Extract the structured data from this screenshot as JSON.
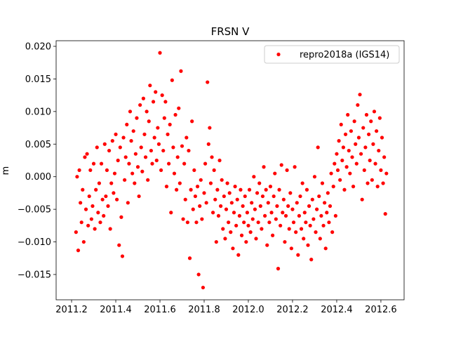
{
  "chart_data": {
    "type": "scatter",
    "title": "FRSN V",
    "ylabel": "m",
    "xlim": [
      2011.13,
      2012.705
    ],
    "ylim": [
      -0.01888,
      0.02086
    ],
    "xticks": [
      2011.2,
      2011.4,
      2011.6,
      2011.8,
      {
        "value": 2012,
        "label": "2012.0"
      },
      2012.2,
      2012.4,
      2012.6
    ],
    "yticks": [
      {
        "value": -0.015,
        "label": "−0.015"
      },
      {
        "value": -0.01,
        "label": "−0.010"
      },
      {
        "value": -0.005,
        "label": "−0.005"
      },
      {
        "value": 0,
        "label": "0.000"
      },
      {
        "value": 0.005,
        "label": "0.005"
      },
      {
        "value": 0.01,
        "label": "0.010"
      },
      {
        "value": 0.015,
        "label": "0.015"
      },
      {
        "value": 0.02,
        "label": "0.020"
      }
    ],
    "legend": "upper right",
    "x": [
      2011.22,
      2011.225,
      2011.23,
      2011.235,
      2011.24,
      2011.245,
      2011.25,
      2011.255,
      2011.26,
      2011.265,
      2011.27,
      2011.275,
      2011.28,
      2011.285,
      2011.29,
      2011.295,
      2011.3,
      2011.305,
      2011.31,
      2011.315,
      2011.32,
      2011.325,
      2011.33,
      2011.335,
      2011.34,
      2011.345,
      2011.35,
      2011.355,
      2011.36,
      2011.365,
      2011.37,
      2011.375,
      2011.38,
      2011.385,
      2011.39,
      2011.395,
      2011.4,
      2011.405,
      2011.41,
      2011.415,
      2011.42,
      2011.425,
      2011.43,
      2011.435,
      2011.44,
      2011.445,
      2011.45,
      2011.455,
      2011.46,
      2011.465,
      2011.47,
      2011.475,
      2011.48,
      2011.485,
      2011.49,
      2011.495,
      2011.5,
      2011.505,
      2011.51,
      2011.515,
      2011.52,
      2011.525,
      2011.53,
      2011.535,
      2011.54,
      2011.545,
      2011.55,
      2011.555,
      2011.56,
      2011.565,
      2011.57,
      2011.575,
      2011.58,
      2011.585,
      2011.59,
      2011.595,
      2011.6,
      2011.605,
      2011.61,
      2011.615,
      2011.62,
      2011.625,
      2011.63,
      2011.635,
      2011.64,
      2011.645,
      2011.65,
      2011.655,
      2011.66,
      2011.665,
      2011.67,
      2011.675,
      2011.68,
      2011.685,
      2011.69,
      2011.695,
      2011.7,
      2011.705,
      2011.71,
      2011.715,
      2011.72,
      2011.725,
      2011.73,
      2011.735,
      2011.74,
      2011.745,
      2011.75,
      2011.755,
      2011.76,
      2011.765,
      2011.77,
      2011.775,
      2011.78,
      2011.785,
      2011.79,
      2011.795,
      2011.8,
      2011.805,
      2011.81,
      2011.815,
      2011.82,
      2011.825,
      2011.83,
      2011.835,
      2011.84,
      2011.845,
      2011.85,
      2011.855,
      2011.86,
      2011.865,
      2011.87,
      2011.875,
      2011.88,
      2011.885,
      2011.89,
      2011.895,
      2011.9,
      2011.905,
      2011.91,
      2011.915,
      2011.92,
      2011.925,
      2011.93,
      2011.935,
      2011.94,
      2011.945,
      2011.95,
      2011.955,
      2011.96,
      2011.965,
      2011.97,
      2011.975,
      2011.98,
      2011.985,
      2011.99,
      2011.995,
      2012.0,
      2012.005,
      2012.01,
      2012.015,
      2012.02,
      2012.025,
      2012.03,
      2012.035,
      2012.04,
      2012.045,
      2012.05,
      2012.055,
      2012.06,
      2012.065,
      2012.07,
      2012.075,
      2012.08,
      2012.085,
      2012.09,
      2012.095,
      2012.1,
      2012.105,
      2012.11,
      2012.115,
      2012.12,
      2012.125,
      2012.13,
      2012.135,
      2012.14,
      2012.145,
      2012.15,
      2012.155,
      2012.16,
      2012.165,
      2012.17,
      2012.175,
      2012.18,
      2012.185,
      2012.19,
      2012.195,
      2012.2,
      2012.205,
      2012.21,
      2012.215,
      2012.22,
      2012.225,
      2012.23,
      2012.235,
      2012.24,
      2012.245,
      2012.25,
      2012.255,
      2012.26,
      2012.265,
      2012.27,
      2012.275,
      2012.28,
      2012.285,
      2012.29,
      2012.295,
      2012.3,
      2012.305,
      2012.31,
      2012.315,
      2012.32,
      2012.325,
      2012.33,
      2012.335,
      2012.34,
      2012.345,
      2012.35,
      2012.355,
      2012.36,
      2012.365,
      2012.37,
      2012.375,
      2012.38,
      2012.385,
      2012.39,
      2012.395,
      2012.4,
      2012.405,
      2012.41,
      2012.415,
      2012.42,
      2012.425,
      2012.43,
      2012.435,
      2012.44,
      2012.445,
      2012.45,
      2012.455,
      2012.46,
      2012.465,
      2012.47,
      2012.475,
      2012.48,
      2012.485,
      2012.49,
      2012.495,
      2012.5,
      2012.505,
      2012.51,
      2012.515,
      2012.52,
      2012.525,
      2012.53,
      2012.535,
      2012.54,
      2012.545,
      2012.55,
      2012.555,
      2012.56,
      2012.565,
      2012.57,
      2012.575,
      2012.58,
      2012.585,
      2012.59,
      2012.595,
      2012.6,
      2012.605,
      2012.61,
      2012.615,
      2012.62,
      2012.625
    ],
    "series": [
      {
        "name": "repro2018a (IGS14)",
        "color": "#ff0000",
        "values": [
          -0.0085,
          0.0,
          -0.0113,
          0.001,
          -0.004,
          -0.007,
          -0.002,
          -0.01,
          0.003,
          -0.005,
          0.0035,
          -0.0075,
          -0.003,
          0.001,
          -0.0065,
          -0.0045,
          0.002,
          -0.008,
          -0.002,
          0.0045,
          -0.0055,
          -0.001,
          -0.007,
          0.002,
          -0.0035,
          -0.006,
          0.005,
          -0.003,
          0.001,
          -0.0045,
          0.004,
          -0.008,
          -0.001,
          0.0055,
          -0.0025,
          0.0005,
          0.0065,
          -0.0035,
          0.0025,
          -0.0105,
          0.0045,
          -0.0062,
          -0.0122,
          0.006,
          -0.0005,
          0.003,
          0.008,
          -0.004,
          0.002,
          0.01,
          0.0055,
          0.0005,
          0.007,
          -0.001,
          0.0035,
          0.009,
          0.0015,
          -0.003,
          0.011,
          0.0045,
          0.0008,
          0.012,
          0.0065,
          0.003,
          0.01,
          -0.0005,
          0.0085,
          0.014,
          0.004,
          0.002,
          0.0115,
          0.006,
          0.013,
          0.0025,
          0.0075,
          0.005,
          0.019,
          0.001,
          0.0125,
          0.004,
          0.009,
          0.0115,
          -0.0015,
          0.0065,
          0.002,
          0.008,
          -0.0055,
          0.0148,
          0.0045,
          0.0005,
          0.0095,
          -0.002,
          0.003,
          0.0105,
          -0.001,
          0.0162,
          0.0047,
          -0.0065,
          0.002,
          -0.0035,
          0.006,
          -0.007,
          0.004,
          -0.0125,
          -0.002,
          0.0085,
          -0.005,
          0.001,
          -0.003,
          -0.007,
          -0.0015,
          -0.015,
          -0.0045,
          -0.0005,
          -0.0065,
          -0.017,
          -0.0025,
          0.002,
          -0.004,
          0.0145,
          0.005,
          0.0075,
          -0.001,
          0.003,
          -0.0055,
          0.001,
          -0.0035,
          -0.01,
          -0.002,
          -0.006,
          0.0025,
          -0.0045,
          -0.0005,
          -0.008,
          -0.003,
          -0.0095,
          -0.005,
          -0.001,
          -0.007,
          -0.0025,
          -0.0085,
          -0.004,
          -0.011,
          -0.0055,
          -0.0015,
          -0.0075,
          -0.0035,
          -0.012,
          -0.006,
          -0.002,
          -0.009,
          -0.0045,
          -0.007,
          -0.003,
          -0.01,
          -0.0055,
          -0.0075,
          -0.002,
          -0.0085,
          -0.004,
          -0.0065,
          0.0,
          -0.005,
          -0.0095,
          -0.0025,
          -0.007,
          -0.001,
          -0.0045,
          -0.008,
          -0.003,
          0.0015,
          -0.006,
          -0.002,
          -0.0105,
          -0.004,
          -0.007,
          -0.0015,
          -0.0055,
          -0.009,
          -0.003,
          0.0005,
          -0.0065,
          -0.0045,
          -0.0141,
          -0.002,
          -0.0075,
          0.0018,
          -0.0055,
          -0.0035,
          -0.01,
          -0.006,
          0.001,
          -0.0045,
          -0.008,
          -0.0025,
          -0.011,
          -0.005,
          -0.007,
          0.0015,
          -0.0085,
          -0.004,
          -0.012,
          -0.006,
          -0.003,
          -0.008,
          -0.001,
          -0.0095,
          -0.0055,
          -0.007,
          -0.002,
          -0.0105,
          -0.0045,
          -0.0075,
          -0.0127,
          -0.0035,
          -0.0065,
          0.0,
          -0.0085,
          -0.005,
          0.0045,
          -0.003,
          -0.0095,
          -0.006,
          -0.001,
          -0.0075,
          -0.004,
          -0.011,
          -0.0055,
          -0.0025,
          -0.007,
          -0.0045,
          0.0005,
          -0.0085,
          -0.0015,
          0.002,
          -0.006,
          0.0035,
          0.001,
          0.0055,
          -0.0005,
          0.008,
          0.0025,
          0.0045,
          -0.002,
          0.0065,
          0.0015,
          0.0095,
          0.004,
          0.0005,
          0.007,
          0.003,
          -0.0015,
          0.0085,
          0.005,
          0.002,
          0.011,
          0.006,
          0.0126,
          0.0035,
          -0.0035,
          0.0075,
          0.001,
          0.0045,
          0.0095,
          -0.001,
          0.0065,
          0.0025,
          0.0085,
          -0.0005,
          0.005,
          0.01,
          0.002,
          0.007,
          -0.0015,
          0.004,
          0.009,
          0.001,
          0.006,
          -0.001,
          0.003,
          -0.0057,
          0.0005
        ]
      }
    ]
  }
}
